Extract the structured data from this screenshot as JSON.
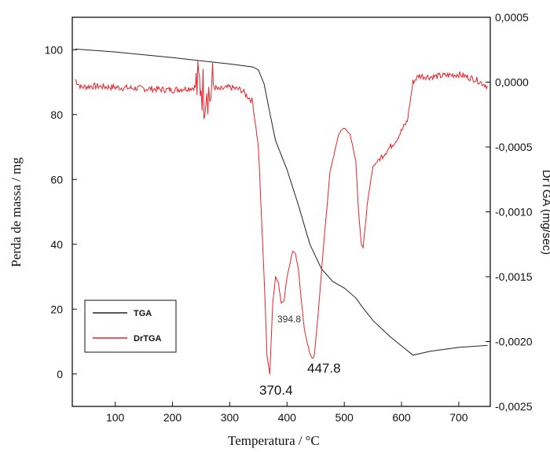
{
  "chart_data": {
    "type": "line",
    "xlabel": "Temperatura /",
    "xlabel_unit": "°C",
    "ylabel_left": "Perda de massa / mg",
    "ylabel_right": "DrTGA (mg/sec)",
    "xlim": [
      25,
      755
    ],
    "ylim_left": [
      -10,
      110
    ],
    "ylim_right": [
      -0.0025,
      0.0005
    ],
    "x_ticks": [
      100,
      200,
      300,
      400,
      500,
      600,
      700
    ],
    "y_left_ticks": [
      0,
      20,
      40,
      60,
      80,
      100
    ],
    "y_right_ticks": [
      -0.0025,
      -0.002,
      -0.0015,
      -0.001,
      -0.0005,
      0.0,
      0.0005
    ],
    "y_right_tick_labels": [
      "-0,0025",
      "-0,0020",
      "-0,0015",
      "-0,0010",
      "-0,0005",
      "0,0000",
      "0,0005"
    ],
    "grid": false,
    "legend_position": "bottom-left",
    "series": [
      {
        "name": "TGA",
        "axis": "left",
        "color": "#222222",
        "x": [
          30,
          100,
          200,
          300,
          340,
          350,
          360,
          370,
          380,
          400,
          420,
          440,
          460,
          480,
          500,
          520,
          530,
          550,
          580,
          620,
          650,
          700,
          750
        ],
        "y": [
          100.2,
          99.3,
          97.6,
          95.6,
          94.7,
          93.8,
          89.5,
          80.5,
          72.0,
          63.0,
          52.0,
          40.0,
          32.5,
          28.5,
          26.5,
          23.5,
          21.0,
          16.5,
          11.5,
          5.8,
          7.0,
          8.2,
          8.8
        ]
      },
      {
        "name": "DrTGA",
        "axis": "right",
        "color": "#e8242c",
        "x": [
          30,
          40,
          60,
          100,
          150,
          200,
          240,
          250,
          255,
          260,
          265,
          270,
          280,
          300,
          320,
          340,
          350,
          360,
          365,
          370,
          375,
          380,
          385,
          390,
          395,
          400,
          410,
          415,
          420,
          430,
          440,
          445,
          448,
          455,
          465,
          475,
          490,
          500,
          510,
          520,
          525,
          530,
          533,
          540,
          550,
          570,
          590,
          610,
          620,
          630,
          650,
          700,
          730,
          750
        ],
        "y": [
          2e-05,
          -4e-05,
          -3e-05,
          -4e-05,
          -5e-05,
          -6e-05,
          -4e-05,
          0.0,
          -0.0001,
          0.0,
          -0.00012,
          -3e-05,
          -6e-05,
          -4e-05,
          -6e-05,
          -0.00015,
          -0.0005,
          -0.0015,
          -0.0021,
          -0.00225,
          -0.0017,
          -0.0015,
          -0.00155,
          -0.0017,
          -0.00168,
          -0.0015,
          -0.0013,
          -0.00133,
          -0.00145,
          -0.0019,
          -0.0021,
          -0.00213,
          -0.0021,
          -0.00175,
          -0.0012,
          -0.0007,
          -0.0004,
          -0.00035,
          -0.0004,
          -0.0006,
          -0.001,
          -0.00125,
          -0.00128,
          -0.00095,
          -0.00065,
          -0.00055,
          -0.00045,
          -0.0003,
          0.0,
          5e-05,
          4e-05,
          6e-05,
          2e-05,
          -3e-05
        ]
      }
    ],
    "annotations": [
      {
        "text": "370.4",
        "x": 370.4,
        "size": "large"
      },
      {
        "text": "394.8",
        "x": 394.8,
        "size": "small"
      },
      {
        "text": "447.8",
        "x": 447.8,
        "size": "large"
      }
    ]
  }
}
